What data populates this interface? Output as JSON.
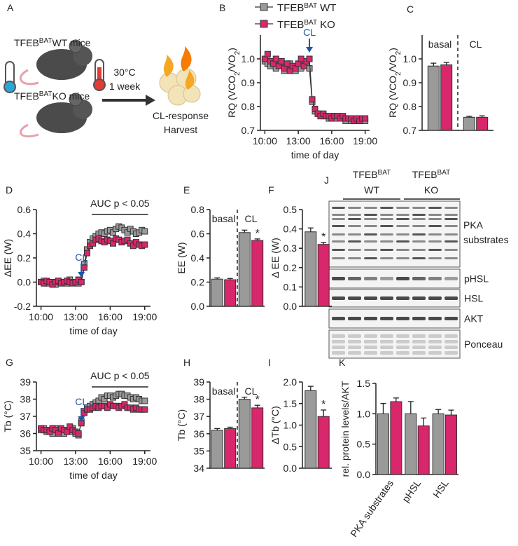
{
  "panel_a": {
    "label": "A",
    "groups": [
      {
        "base": "TFEB",
        "sup": "BAT",
        "rest": "WT mice"
      },
      {
        "base": "TFEB",
        "sup": "BAT",
        "rest": "KO mice"
      }
    ],
    "condition": [
      "30°C",
      "1 week"
    ],
    "outcome": [
      "CL-response",
      "Harvest"
    ]
  },
  "panel_j": {
    "label": "J",
    "groups": [
      {
        "base": "TFEB",
        "sup": "BAT",
        "genotype": "WT"
      },
      {
        "base": "TFEB",
        "sup": "BAT",
        "genotype": "KO"
      }
    ],
    "bands": [
      "PKA substrates",
      "pHSL",
      "HSL",
      "AKT",
      "Ponceau"
    ]
  },
  "chart_data": [
    {
      "type": "line",
      "panel": "B",
      "ylabel": [
        {
          "text": "RQ (VCO"
        },
        {
          "text": "2",
          "sub": true
        },
        {
          "text": "/VO"
        },
        {
          "text": "2",
          "sub": true
        },
        {
          "text": ")"
        }
      ],
      "xlabel": "time of day",
      "legend": true,
      "legend_prefix": {
        "base": "TFEB",
        "sup": "BAT"
      },
      "x": [
        10,
        10.25,
        10.5,
        10.75,
        11,
        11.25,
        11.5,
        11.75,
        12,
        12.25,
        12.5,
        12.75,
        13,
        13.25,
        13.5,
        13.75,
        14,
        14.25,
        14.5,
        14.75,
        15,
        15.25,
        15.5,
        15.75,
        16,
        16.25,
        16.5,
        16.75,
        17,
        17.25,
        17.5,
        17.75,
        18,
        18.25,
        18.5,
        18.75,
        19
      ],
      "xlim": [
        9.6,
        19.4
      ],
      "xticks": [
        {
          "value": 10,
          "label": "10:00"
        },
        {
          "value": 13,
          "label": "13:00"
        },
        {
          "value": 16,
          "label": "16:00"
        },
        {
          "value": 19,
          "label": "19:00"
        }
      ],
      "ylim": [
        0.7,
        1.1
      ],
      "yticks": [
        0.7,
        0.8,
        0.9,
        {
          "value": 1,
          "label": "1.0"
        }
      ],
      "series": [
        {
          "name": "WT",
          "color": "#9a9a9a",
          "values": [
            0.99,
            0.98,
            0.97,
            0.98,
            0.96,
            0.99,
            0.97,
            0.95,
            0.97,
            0.98,
            0.96,
            0.95,
            0.97,
            0.96,
            0.98,
            0.97,
            0.96,
            0.82,
            0.78,
            0.77,
            0.76,
            0.76,
            0.76,
            0.75,
            0.75,
            0.76,
            0.75,
            0.75,
            0.75,
            0.74,
            0.75,
            0.74,
            0.74,
            0.75,
            0.74,
            0.74,
            0.74
          ]
        },
        {
          "name": "KO",
          "color": "#d9276c",
          "values": [
            1.0,
            1.02,
            0.99,
            0.98,
            1.0,
            0.97,
            0.99,
            0.96,
            0.98,
            0.95,
            0.97,
            0.96,
            0.98,
            1.0,
            0.97,
            0.99,
            1.0,
            0.83,
            0.79,
            0.77,
            0.76,
            0.77,
            0.76,
            0.76,
            0.75,
            0.76,
            0.76,
            0.75,
            0.76,
            0.75,
            0.75,
            0.75,
            0.74,
            0.75,
            0.74,
            0.75,
            0.75
          ]
        }
      ],
      "cl": {
        "label": "CL",
        "x": 14
      }
    },
    {
      "type": "bar",
      "panel": "C",
      "ylabel": [
        {
          "text": "RQ (VCO"
        },
        {
          "text": "2",
          "sub": true
        },
        {
          "text": "/VO"
        },
        {
          "text": "2",
          "sub": true
        },
        {
          "text": ")"
        }
      ],
      "categories": [
        "basal",
        "CL"
      ],
      "category_position": "top",
      "split": true,
      "ylim": [
        0.7,
        1.1
      ],
      "yticks": [
        0.7,
        0.8,
        0.9,
        {
          "value": 1,
          "label": "1.0"
        }
      ],
      "series": [
        {
          "color": "#9a9a9a",
          "values": [
            0.97,
            0.755
          ],
          "errors": [
            0.012,
            0.004
          ]
        },
        {
          "color": "#d9276c",
          "values": [
            0.975,
            0.755
          ],
          "errors": [
            0.01,
            0.006
          ]
        }
      ]
    },
    {
      "type": "line",
      "panel": "D",
      "ylabel": "ΔEE (W)",
      "xlabel": "time of day",
      "x": [
        10,
        10.25,
        10.5,
        10.75,
        11,
        11.25,
        11.5,
        11.75,
        12,
        12.25,
        12.5,
        12.75,
        13,
        13.25,
        13.5,
        13.75,
        14,
        14.25,
        14.5,
        14.75,
        15,
        15.25,
        15.5,
        15.75,
        16,
        16.25,
        16.5,
        16.75,
        17,
        17.25,
        17.5,
        17.75,
        18,
        18.25,
        18.5,
        18.75,
        19
      ],
      "xlim": [
        9.6,
        19.5
      ],
      "xticks": [
        {
          "value": 10,
          "label": "10:00"
        },
        {
          "value": 13,
          "label": "13:00"
        },
        {
          "value": 16,
          "label": "16:00"
        },
        {
          "value": 19,
          "label": "19:00"
        }
      ],
      "ylim": [
        -0.2,
        0.6
      ],
      "yticks": [
        -0.2,
        {
          "value": 0,
          "label": "0.0"
        },
        0.2,
        0.4,
        0.6
      ],
      "series": [
        {
          "color": "#9a9a9a",
          "values": [
            0.0,
            0.01,
            -0.01,
            0.0,
            0.0,
            -0.02,
            0.01,
            0.0,
            0.0,
            -0.01,
            0.02,
            0.0,
            0.0,
            -0.01,
            0.0,
            0.15,
            0.27,
            0.33,
            0.36,
            0.38,
            0.4,
            0.41,
            0.4,
            0.42,
            0.43,
            0.41,
            0.44,
            0.46,
            0.45,
            0.43,
            0.41,
            0.44,
            0.42,
            0.4,
            0.41,
            0.43,
            0.42
          ]
        },
        {
          "color": "#d9276c",
          "values": [
            0.0,
            -0.01,
            0.01,
            0.0,
            -0.02,
            0.0,
            0.01,
            -0.01,
            0.0,
            0.01,
            0.0,
            -0.01,
            0.0,
            0.02,
            0.0,
            0.12,
            0.24,
            0.3,
            0.32,
            0.35,
            0.36,
            0.34,
            0.33,
            0.35,
            0.34,
            0.32,
            0.36,
            0.35,
            0.33,
            0.34,
            0.35,
            0.32,
            0.3,
            0.33,
            0.31,
            0.3,
            0.31
          ]
        }
      ],
      "cl": {
        "label": "CL",
        "x": 13.5
      },
      "auc": {
        "label": "AUC p < 0.05",
        "from": 14.4,
        "to": 19.3
      }
    },
    {
      "type": "bar",
      "panel": "E",
      "ylabel": "EE (W)",
      "categories": [
        "basal",
        "CL"
      ],
      "category_position": "top",
      "split": true,
      "ylim": [
        0,
        0.8
      ],
      "yticks": [
        {
          "value": 0,
          "label": "0.0"
        },
        0.2,
        0.4,
        0.6,
        0.8
      ],
      "series": [
        {
          "color": "#9a9a9a",
          "values": [
            0.225,
            0.61
          ],
          "errors": [
            0.01,
            0.02
          ]
        },
        {
          "color": "#d9276c",
          "values": [
            0.22,
            0.545
          ],
          "errors": [
            0.01,
            0.012
          ],
          "significance": [
            null,
            "*"
          ]
        }
      ]
    },
    {
      "type": "bar",
      "panel": "F",
      "ylabel": "Δ EE (W)",
      "ylim": [
        0,
        0.5
      ],
      "yticks": [
        {
          "value": 0,
          "label": "0.0"
        },
        0.1,
        0.2,
        0.3,
        0.4,
        0.5
      ],
      "series": [
        {
          "color": "#9a9a9a",
          "values": [
            0.385
          ],
          "errors": [
            0.02
          ]
        },
        {
          "color": "#d9276c",
          "values": [
            0.32
          ],
          "errors": [
            0.01
          ],
          "significance": [
            "*"
          ]
        }
      ]
    },
    {
      "type": "line",
      "panel": "G",
      "ylabel": "Tb (°C)",
      "xlabel": "time of day",
      "x": [
        10,
        10.25,
        10.5,
        10.75,
        11,
        11.25,
        11.5,
        11.75,
        12,
        12.25,
        12.5,
        12.75,
        13,
        13.25,
        13.5,
        13.75,
        14,
        14.25,
        14.5,
        14.75,
        15,
        15.25,
        15.5,
        15.75,
        16,
        16.25,
        16.5,
        16.75,
        17,
        17.25,
        17.5,
        17.75,
        18,
        18.25,
        18.5,
        18.75,
        19
      ],
      "xlim": [
        9.6,
        19.5
      ],
      "xticks": [
        {
          "value": 10,
          "label": "10:00"
        },
        {
          "value": 13,
          "label": "13:00"
        },
        {
          "value": 16,
          "label": "16:00"
        },
        {
          "value": 19,
          "label": "19:00"
        }
      ],
      "ylim": [
        35,
        39
      ],
      "yticks": [
        35,
        36,
        37,
        38,
        39
      ],
      "series": [
        {
          "color": "#9a9a9a",
          "values": [
            36.2,
            36.3,
            36.1,
            36.2,
            36.0,
            36.3,
            36.2,
            36.1,
            36.0,
            36.2,
            36.1,
            36.3,
            36.0,
            35.9,
            36.7,
            37.3,
            37.5,
            37.6,
            37.7,
            37.8,
            37.9,
            38.1,
            38.0,
            38.2,
            38.2,
            38.1,
            38.2,
            38.3,
            38.3,
            38.2,
            38.2,
            38.1,
            38.0,
            38.1,
            38.0,
            37.9,
            37.9
          ]
        },
        {
          "color": "#d9276c",
          "values": [
            36.3,
            36.2,
            36.2,
            36.1,
            36.3,
            36.2,
            36.0,
            36.3,
            36.2,
            36.1,
            36.4,
            36.2,
            36.1,
            36.0,
            36.6,
            37.2,
            37.4,
            37.4,
            37.5,
            37.6,
            37.5,
            37.6,
            37.6,
            37.5,
            37.7,
            37.6,
            37.6,
            37.5,
            37.6,
            37.7,
            37.5,
            37.5,
            37.4,
            37.5,
            37.4,
            37.4,
            37.4
          ]
        }
      ],
      "cl": {
        "label": "CL",
        "x": 13.5
      },
      "auc": {
        "label": "AUC p < 0.05",
        "from": 14.4,
        "to": 19.3
      }
    },
    {
      "type": "bar",
      "panel": "H",
      "ylabel": "Tb (°C)",
      "categories": [
        "basal",
        "CL"
      ],
      "category_position": "top",
      "split": true,
      "ylim": [
        34,
        39
      ],
      "yticks": [
        34,
        35,
        36,
        37,
        38,
        39
      ],
      "series": [
        {
          "color": "#9a9a9a",
          "values": [
            36.2,
            38.0
          ],
          "errors": [
            0.1,
            0.12
          ]
        },
        {
          "color": "#d9276c",
          "values": [
            36.3,
            37.5
          ],
          "errors": [
            0.08,
            0.15
          ],
          "significance": [
            null,
            "*"
          ]
        }
      ]
    },
    {
      "type": "bar",
      "panel": "I",
      "ylabel": "ΔTb (°C)",
      "ylim": [
        0,
        2
      ],
      "yticks": [
        {
          "value": 0,
          "label": "0.0"
        },
        0.5,
        {
          "value": 1,
          "label": "1.0"
        },
        1.5,
        {
          "value": 2,
          "label": "2.0"
        }
      ],
      "series": [
        {
          "color": "#9a9a9a",
          "values": [
            1.8
          ],
          "errors": [
            0.1
          ]
        },
        {
          "color": "#d9276c",
          "values": [
            1.2
          ],
          "errors": [
            0.15
          ],
          "significance": [
            "*"
          ]
        }
      ]
    },
    {
      "type": "bar",
      "panel": "K",
      "ylabel": "rel. protein levels/AKT",
      "categories": [
        "PKA substrates",
        "pHSL",
        "HSL"
      ],
      "category_position": "rotated",
      "ylim": [
        0,
        1.5
      ],
      "yticks": [
        {
          "value": 0,
          "label": "0.0"
        },
        0.5,
        {
          "value": 1,
          "label": "1.0"
        },
        1.5
      ],
      "series": [
        {
          "color": "#9a9a9a",
          "values": [
            1.0,
            1.0,
            1.0
          ],
          "errors": [
            0.17,
            0.2,
            0.07
          ]
        },
        {
          "color": "#d9276c",
          "values": [
            1.2,
            0.8,
            0.98
          ],
          "errors": [
            0.06,
            0.13,
            0.08
          ]
        }
      ]
    }
  ]
}
